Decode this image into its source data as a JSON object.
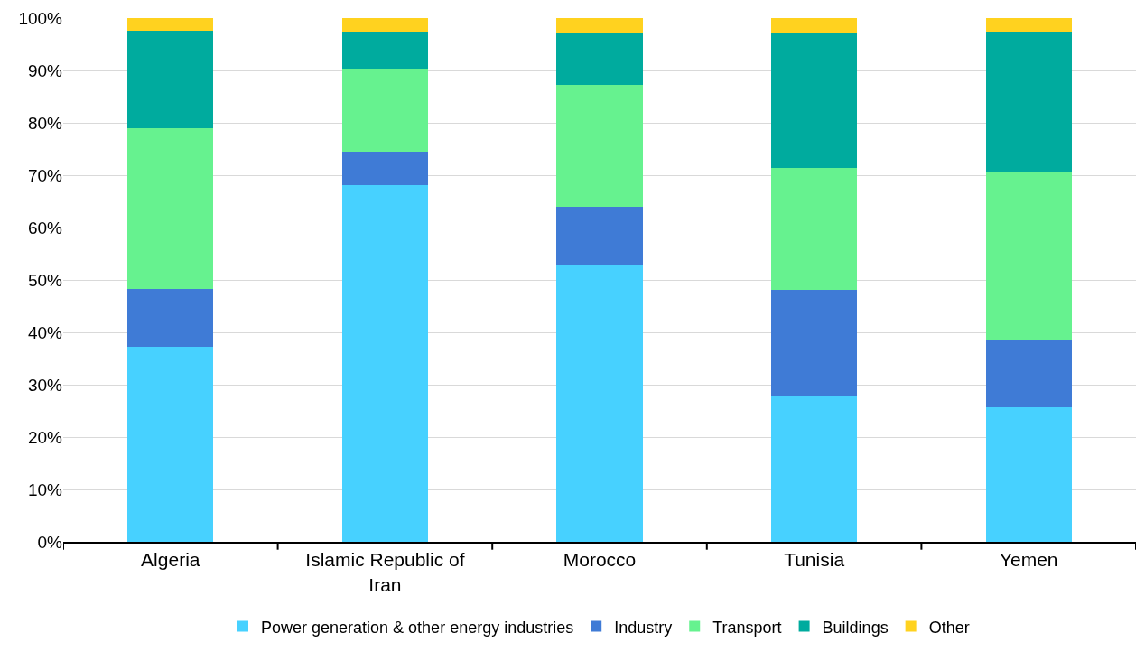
{
  "chart_data": {
    "type": "bar",
    "stacked": true,
    "categories": [
      "Algeria",
      "Islamic Republic of Iran",
      "Morocco",
      "Tunisia",
      "Yemen"
    ],
    "series": [
      {
        "name": "Power generation & other energy industries",
        "color": "#47d1ff",
        "values": [
          37.2,
          68.1,
          52.8,
          27.9,
          25.7
        ]
      },
      {
        "name": "Industry",
        "color": "#3f7bd6",
        "values": [
          11.1,
          6.4,
          11.2,
          20.2,
          12.7
        ]
      },
      {
        "name": "Transport",
        "color": "#66f28f",
        "values": [
          30.7,
          15.8,
          23.2,
          23.3,
          32.3
        ]
      },
      {
        "name": "Buildings",
        "color": "#00ab9e",
        "values": [
          18.6,
          7.1,
          10.0,
          25.8,
          26.7
        ]
      },
      {
        "name": "Other",
        "color": "#ffd21f",
        "values": [
          2.4,
          2.6,
          2.8,
          2.8,
          2.6
        ]
      }
    ],
    "ylim": [
      0,
      100
    ],
    "yticks": [
      {
        "value": 0,
        "label": "0%"
      },
      {
        "value": 10,
        "label": "10%"
      },
      {
        "value": 20,
        "label": "20%"
      },
      {
        "value": 30,
        "label": "30%"
      },
      {
        "value": 40,
        "label": "40%"
      },
      {
        "value": 50,
        "label": "50%"
      },
      {
        "value": 60,
        "label": "60%"
      },
      {
        "value": 70,
        "label": "70%"
      },
      {
        "value": 80,
        "label": "80%"
      },
      {
        "value": 90,
        "label": "90%"
      },
      {
        "value": 100,
        "label": "100%"
      }
    ],
    "grid": "y",
    "legend": "bottom"
  }
}
